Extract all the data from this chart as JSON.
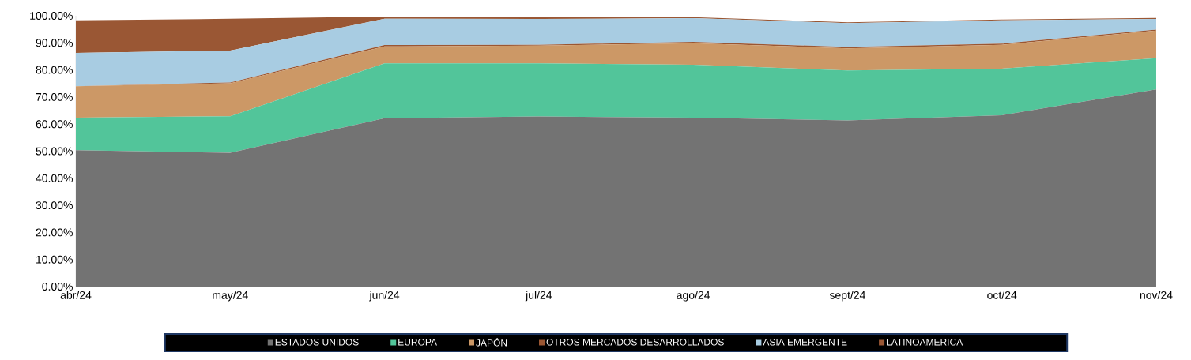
{
  "chart_data": {
    "type": "area",
    "stacked": true,
    "legend": "bottom",
    "categories": [
      "abr/24",
      "may/24",
      "jun/24",
      "jul/24",
      "ago/24",
      "sept/24",
      "oct/24",
      "nov/24"
    ],
    "ylim": [
      0,
      100
    ],
    "yticks": [
      {
        "value": 0,
        "label": "0.00%"
      },
      {
        "value": 10,
        "label": "10.00%"
      },
      {
        "value": 20,
        "label": "20.00%"
      },
      {
        "value": 30,
        "label": "30.00%"
      },
      {
        "value": 40,
        "label": "40.00%"
      },
      {
        "value": 50,
        "label": "50.00%"
      },
      {
        "value": 60,
        "label": "60.00%"
      },
      {
        "value": 70,
        "label": "70.00%"
      },
      {
        "value": 80,
        "label": "80.00%"
      },
      {
        "value": 90,
        "label": "90.00%"
      },
      {
        "value": 100,
        "label": "100.00%"
      }
    ],
    "series": [
      {
        "name": "ESTADOS UNIDOS",
        "color": "#737373",
        "values": [
          50.4,
          49.4,
          62.2,
          62.8,
          62.4,
          61.4,
          63.3,
          72.8
        ]
      },
      {
        "name": "EUROPA",
        "color": "#52c59a",
        "values": [
          12.0,
          13.5,
          20.2,
          19.6,
          19.5,
          18.4,
          17.2,
          11.5
        ]
      },
      {
        "name": "JAPÓN",
        "color": "#cc9866",
        "values": [
          11.6,
          12.2,
          6.3,
          6.6,
          8.0,
          8.2,
          8.8,
          10.2
        ]
      },
      {
        "name": "OTROS MERCADOS DESARROLLADOS",
        "color": "#9a5632",
        "values": [
          0.0,
          0.3,
          0.5,
          0.3,
          0.5,
          0.5,
          0.4,
          0.4
        ]
      },
      {
        "name": "ASIA EMERGENTE",
        "color": "#a8cce2",
        "values": [
          12.3,
          11.8,
          9.7,
          9.5,
          8.7,
          8.8,
          8.6,
          3.9
        ]
      },
      {
        "name": "LATINOAMERICA",
        "color": "#9a5734",
        "values": [
          12.0,
          11.7,
          0.8,
          0.6,
          0.4,
          0.3,
          0.3,
          0.4
        ]
      }
    ]
  }
}
